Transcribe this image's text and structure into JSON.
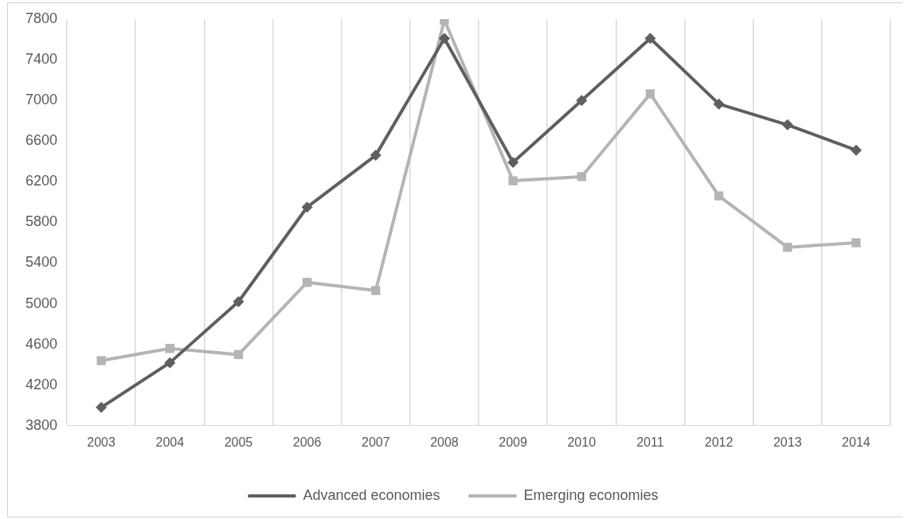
{
  "chart_data": {
    "type": "line",
    "categories": [
      "2003",
      "2004",
      "2005",
      "2006",
      "2007",
      "2008",
      "2009",
      "2010",
      "2011",
      "2012",
      "2013",
      "2014"
    ],
    "series": [
      {
        "name": "Advanced economies",
        "color": "#5f5f5f",
        "marker": "diamond",
        "values": [
          3980,
          4420,
          5020,
          5950,
          6460,
          7610,
          6390,
          7000,
          7610,
          6965,
          6760,
          6510
        ]
      },
      {
        "name": "Emerging economies",
        "color": "#b4b4b4",
        "marker": "square",
        "values": [
          4440,
          4560,
          4500,
          5210,
          5130,
          7790,
          6210,
          6250,
          7065,
          6060,
          5555,
          5600
        ]
      }
    ],
    "ylim": [
      3800,
      7800
    ],
    "yticks": [
      3800,
      4200,
      4600,
      5000,
      5400,
      5800,
      6200,
      6600,
      7000,
      7400,
      7800
    ],
    "grid": "x",
    "legend": "bottom",
    "line_style": "solid"
  }
}
